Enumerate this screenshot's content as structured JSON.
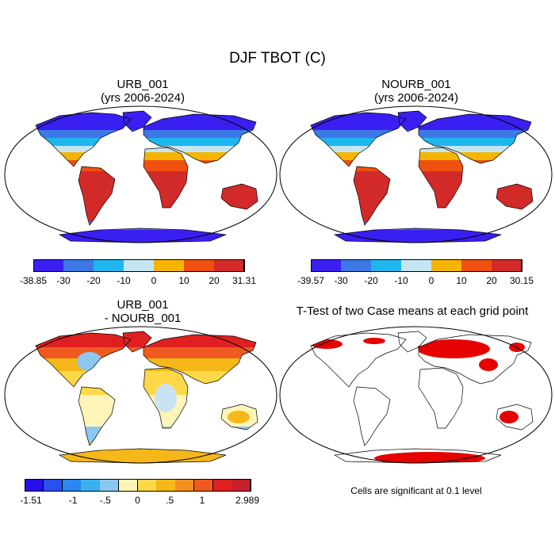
{
  "figure": {
    "title": "DJF TBOT (C)",
    "panels": [
      {
        "id": "urb",
        "title": "URB_001",
        "subtitle": "(yrs 2006-2024)"
      },
      {
        "id": "nourb",
        "title": "NOURB_001",
        "subtitle": "(yrs 2006-2024)"
      },
      {
        "id": "diff",
        "title": "URB_001",
        "subtitle": "- NOURB_001"
      },
      {
        "id": "ttest",
        "title": "T-Test of two Case means at each grid point",
        "subtitle": ""
      }
    ],
    "note": "Cells are significant at 0.1 level"
  },
  "colorbars": {
    "urb": {
      "colors": [
        "#3a1ff2",
        "#3c78e6",
        "#1fb6f0",
        "#c4e6f2",
        "#f5b400",
        "#f05010",
        "#d22a28"
      ],
      "labels": [
        "-38.85",
        "-30",
        "-20",
        "-10",
        "0",
        "10",
        "20",
        "31.31"
      ]
    },
    "nourb": {
      "colors": [
        "#3a1ff2",
        "#3c78e6",
        "#1fb6f0",
        "#c4e6f2",
        "#f5b400",
        "#f05010",
        "#d22a28"
      ],
      "labels": [
        "-39.57",
        "-30",
        "-20",
        "-10",
        "0",
        "10",
        "20",
        "30.15"
      ]
    },
    "diff": {
      "colors": [
        "#2410e8",
        "#2a4ff0",
        "#2a86f0",
        "#3ab0f0",
        "#8ac8f0",
        "#fff5b8",
        "#ffd848",
        "#f5b818",
        "#f29020",
        "#f05a20",
        "#e02020",
        "#c8202c"
      ],
      "labels": [
        {
          "slot": 0,
          "text": "-1.51"
        },
        {
          "slot": 3,
          "text": "-1"
        },
        {
          "slot": 5,
          "text": "-.5"
        },
        {
          "slot": 7,
          "text": "0"
        },
        {
          "slot": 9,
          "text": ".5"
        },
        {
          "slot": 11,
          "text": "1"
        },
        {
          "slot": 14,
          "text": "2.989"
        }
      ]
    }
  },
  "colors": {
    "significant": "#e60000",
    "ocean": "#ffffff",
    "coastline": "#000000"
  }
}
